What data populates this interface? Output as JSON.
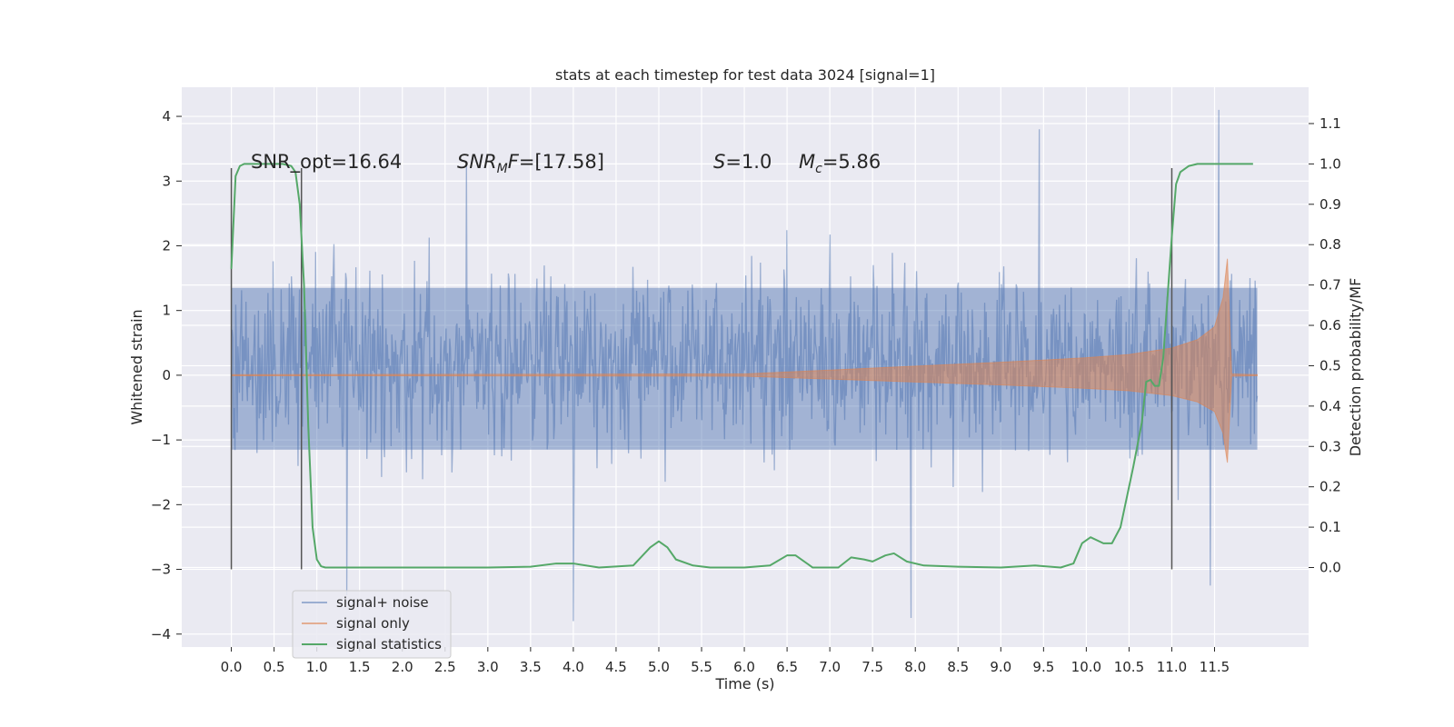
{
  "chart_data": {
    "type": "line",
    "title": "stats at each timestep for test data 3024 [signal=1]",
    "xlabel": "Time (s)",
    "ylabel_left": "Whitened strain",
    "ylabel_right": "Detection probability/MF",
    "xlim": [
      -0.58,
      12.6
    ],
    "ylim_left": [
      -4.2,
      4.45
    ],
    "ylim_right": [
      -0.197,
      1.19
    ],
    "x_ticks": [
      0.0,
      0.5,
      1.0,
      1.5,
      2.0,
      2.5,
      3.0,
      3.5,
      4.0,
      4.5,
      5.0,
      5.5,
      6.0,
      6.5,
      7.0,
      7.5,
      8.0,
      8.5,
      9.0,
      9.5,
      10.0,
      10.5,
      11.0,
      11.5
    ],
    "x_tick_labels": [
      "0.0",
      "0.5",
      "1.0",
      "1.5",
      "2.0",
      "2.5",
      "3.0",
      "3.5",
      "4.0",
      "4.5",
      "5.0",
      "5.5",
      "6.0",
      "6.5",
      "7.0",
      "7.5",
      "8.0",
      "8.5",
      "9.0",
      "9.5",
      "10.0",
      "10.5",
      "11.0",
      "11.5"
    ],
    "y_left_ticks": [
      -4,
      -3,
      -2,
      -1,
      0,
      1,
      2,
      3,
      4
    ],
    "y_left_tick_labels": [
      "−4",
      "−3",
      "−2",
      "−1",
      "0",
      "1",
      "2",
      "3",
      "4"
    ],
    "y_right_ticks": [
      0.0,
      0.1,
      0.2,
      0.3,
      0.4,
      0.5,
      0.6,
      0.7,
      0.8,
      0.9,
      1.0,
      1.1
    ],
    "y_right_tick_labels": [
      "0.0",
      "0.1",
      "0.2",
      "0.3",
      "0.4",
      "0.5",
      "0.6",
      "0.7",
      "0.8",
      "0.9",
      "1.0",
      "1.1"
    ],
    "grid": true,
    "legend_position": "lower-left",
    "annotations": [
      "SNR_opt=16.64",
      "SNR_MF=[17.58]",
      "S=1.0",
      "M_c=5.86"
    ],
    "vertical_lines_x": [
      0.0,
      0.82,
      11.0
    ],
    "vertical_lines_ylim": [
      -3.0,
      3.2
    ],
    "series": [
      {
        "name": "signal+ noise",
        "axis": "left",
        "color": "#4c72b0",
        "x_range": [
          0.0,
          12.0
        ],
        "typical_band": [
          -1.6,
          2.0
        ],
        "notable_peaks": [
          [
            11.55,
            4.1
          ],
          [
            9.45,
            3.8
          ],
          [
            2.75,
            3.3
          ],
          [
            7.95,
            -3.75
          ],
          [
            4.0,
            -3.8
          ],
          [
            1.35,
            -3.4
          ],
          [
            11.45,
            -3.25
          ]
        ]
      },
      {
        "name": "signal only",
        "axis": "left",
        "color": "#dd8452",
        "description_points": {
          "x": [
            0.0,
            6.0,
            7.0,
            8.0,
            9.0,
            10.0,
            10.5,
            11.0,
            11.3,
            11.5,
            11.6,
            11.65,
            11.7,
            12.0
          ],
          "envelope": [
            0.01,
            0.02,
            0.08,
            0.14,
            0.2,
            0.27,
            0.32,
            0.42,
            0.55,
            0.75,
            1.2,
            1.8,
            0.02,
            0.01
          ]
        }
      },
      {
        "name": "signal statistics",
        "axis": "right",
        "color": "#55a868",
        "x": [
          0.0,
          0.05,
          0.1,
          0.15,
          0.2,
          0.3,
          0.4,
          0.5,
          0.6,
          0.7,
          0.75,
          0.8,
          0.85,
          0.9,
          0.95,
          1.0,
          1.05,
          1.1,
          1.5,
          2.0,
          3.0,
          3.5,
          3.8,
          4.0,
          4.3,
          4.7,
          4.9,
          5.0,
          5.1,
          5.2,
          5.4,
          5.6,
          6.0,
          6.3,
          6.5,
          6.6,
          6.8,
          7.1,
          7.25,
          7.4,
          7.5,
          7.65,
          7.75,
          7.9,
          8.1,
          8.5,
          9.0,
          9.4,
          9.7,
          9.85,
          9.95,
          10.05,
          10.2,
          10.3,
          10.4,
          10.55,
          10.65,
          10.7,
          10.75,
          10.8,
          10.85,
          10.9,
          11.0,
          11.05,
          11.1,
          11.2,
          11.3,
          11.5,
          11.7,
          11.95
        ],
        "values": [
          0.74,
          0.97,
          0.995,
          1.0,
          1.0,
          1.0,
          1.0,
          1.0,
          1.0,
          0.995,
          0.98,
          0.9,
          0.7,
          0.35,
          0.1,
          0.02,
          0.003,
          0.0,
          0.0,
          0.0,
          0.0,
          0.002,
          0.01,
          0.01,
          0.0,
          0.005,
          0.05,
          0.065,
          0.05,
          0.02,
          0.005,
          0.0,
          0.0,
          0.005,
          0.03,
          0.03,
          0.0,
          0.0,
          0.025,
          0.02,
          0.015,
          0.03,
          0.035,
          0.015,
          0.005,
          0.002,
          0.0,
          0.005,
          0.0,
          0.01,
          0.06,
          0.075,
          0.06,
          0.06,
          0.1,
          0.25,
          0.36,
          0.46,
          0.465,
          0.45,
          0.45,
          0.52,
          0.82,
          0.95,
          0.98,
          0.995,
          1.0,
          1.0,
          1.0,
          1.0
        ]
      }
    ]
  }
}
